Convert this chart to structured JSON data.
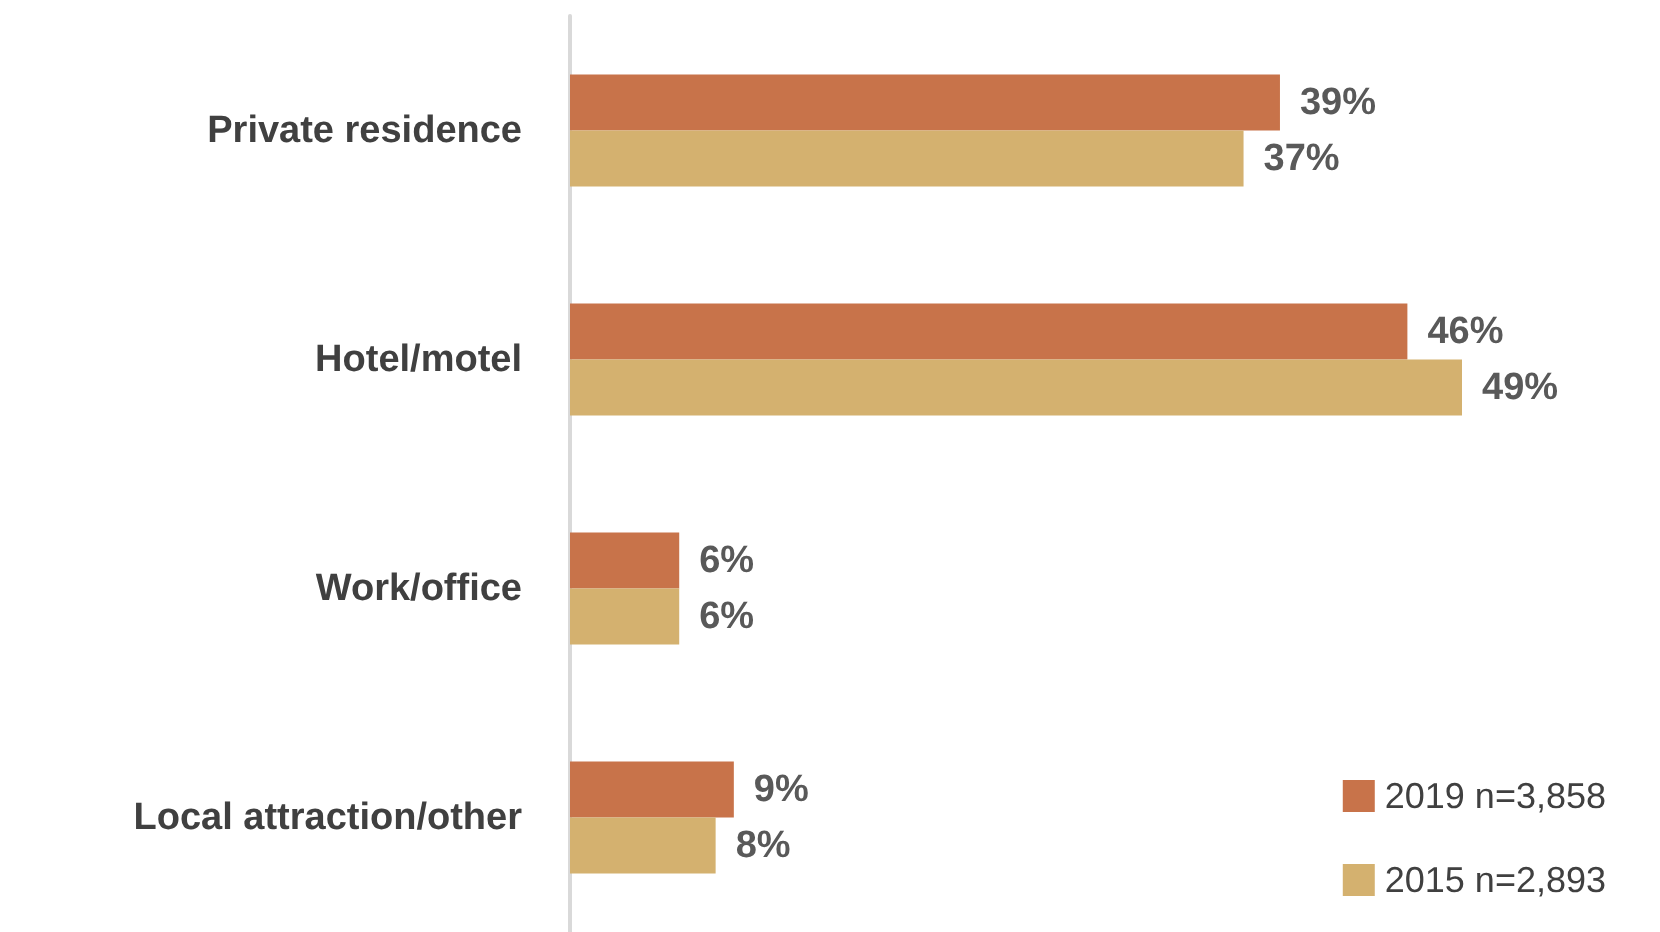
{
  "chart_data": {
    "type": "bar",
    "orientation": "horizontal",
    "categories": [
      "Private residence",
      "Hotel/motel",
      "Work/office",
      "Local attraction/other"
    ],
    "series": [
      {
        "name": "2019 n=3,858",
        "color": "#c8734a",
        "values": [
          39,
          46,
          6,
          9
        ],
        "value_labels": [
          "39%",
          "46%",
          "6%",
          "9%"
        ]
      },
      {
        "name": "2015 n=2,893",
        "color": "#d4b16f",
        "values": [
          37,
          49,
          6,
          8
        ],
        "value_labels": [
          "37%",
          "49%",
          "6%",
          "8%"
        ]
      }
    ],
    "legend": "bottom right"
  }
}
